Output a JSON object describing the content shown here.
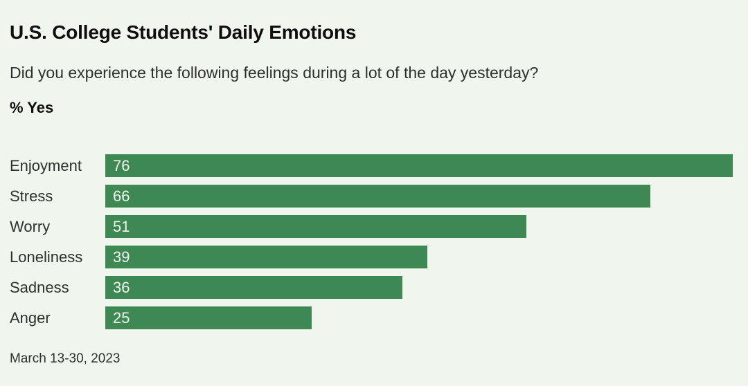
{
  "header": {
    "title": "U.S. College Students' Daily Emotions",
    "subtitle": "Did you experience the following feelings during a lot of the day yesterday?",
    "unit_label": "% Yes"
  },
  "footer": {
    "date_note": "March 13-30, 2023"
  },
  "colors": {
    "background": "#f0f5ee",
    "bar": "#3e8853",
    "title_text": "#0e0e0e",
    "body_text": "#2d302e",
    "value_text": "#f2f6f0"
  },
  "chart_data": {
    "type": "bar",
    "orientation": "horizontal",
    "title": "U.S. College Students' Daily Emotions",
    "subtitle": "Did you experience the following feelings during a lot of the day yesterday?",
    "xlabel": "% Yes",
    "ylabel": "",
    "categories": [
      "Enjoyment",
      "Stress",
      "Worry",
      "Loneliness",
      "Sadness",
      "Anger"
    ],
    "values": [
      76,
      66,
      51,
      39,
      36,
      25
    ],
    "xlim": [
      0,
      76
    ],
    "grid": false,
    "legend": false,
    "value_labels": "inside-start",
    "annotations": [
      "March 13-30, 2023"
    ]
  }
}
